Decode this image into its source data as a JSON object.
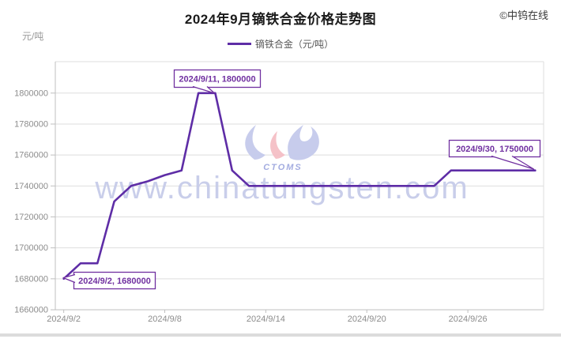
{
  "page": {
    "title": "2024年9月镝铁合金价格走势图",
    "copyright": "©中钨在线",
    "y_unit": "元/吨"
  },
  "legend": {
    "label": "镝铁合金（元/吨）"
  },
  "watermark": {
    "url": "www.chinatungsten.com",
    "logo_text": "CTOMS"
  },
  "colors": {
    "line": "#5E2DA6",
    "annotation": "#7030A0",
    "grid": "#DEDEDE",
    "axis": "#BFBFBF",
    "axis_text": "#8C8C8C",
    "watermark": "#C7CCE9",
    "logo_blue": "#C5CAEC",
    "logo_pink": "#F5BFC6",
    "logo_text": "#9FA8DF"
  },
  "chart_data": {
    "type": "line",
    "title": "2024年9月镝铁合金价格走势图",
    "ylabel": "元/吨",
    "ylim": [
      1660000,
      1800000
    ],
    "y_ticks": [
      1660000,
      1680000,
      1700000,
      1720000,
      1740000,
      1760000,
      1780000,
      1800000
    ],
    "grid": "horizontal",
    "legend_position": "top",
    "x": [
      "2024/9/2",
      "2024/9/3",
      "2024/9/4",
      "2024/9/5",
      "2024/9/6",
      "2024/9/7",
      "2024/9/8",
      "2024/9/9",
      "2024/9/10",
      "2024/9/11",
      "2024/9/12",
      "2024/9/13",
      "2024/9/14",
      "2024/9/15",
      "2024/9/16",
      "2024/9/17",
      "2024/9/18",
      "2024/9/19",
      "2024/9/20",
      "2024/9/21",
      "2024/9/22",
      "2024/9/23",
      "2024/9/24",
      "2024/9/25",
      "2024/9/26",
      "2024/9/27",
      "2024/9/28",
      "2024/9/29",
      "2024/9/30"
    ],
    "x_tick_labels": [
      "2024/9/2",
      "2024/9/8",
      "2024/9/14",
      "2024/9/20",
      "2024/9/26"
    ],
    "series": [
      {
        "name": "镝铁合金（元/吨）",
        "values": [
          1680000,
          1690000,
          1690000,
          1730000,
          1740000,
          1743000,
          1747000,
          1750000,
          1800000,
          1800000,
          1750000,
          1740000,
          1740000,
          1740000,
          1740000,
          1740000,
          1740000,
          1740000,
          1740000,
          1740000,
          1740000,
          1740000,
          1740000,
          1750000,
          1750000,
          1750000,
          1750000,
          1750000,
          1750000
        ]
      }
    ],
    "annotations": [
      {
        "text": "2024/9/2, 1680000",
        "date": "2024/9/2",
        "value": 1680000
      },
      {
        "text": "2024/9/11, 1800000",
        "date": "2024/9/11",
        "value": 1800000
      },
      {
        "text": "2024/9/30, 1750000",
        "date": "2024/9/30",
        "value": 1750000
      }
    ]
  }
}
